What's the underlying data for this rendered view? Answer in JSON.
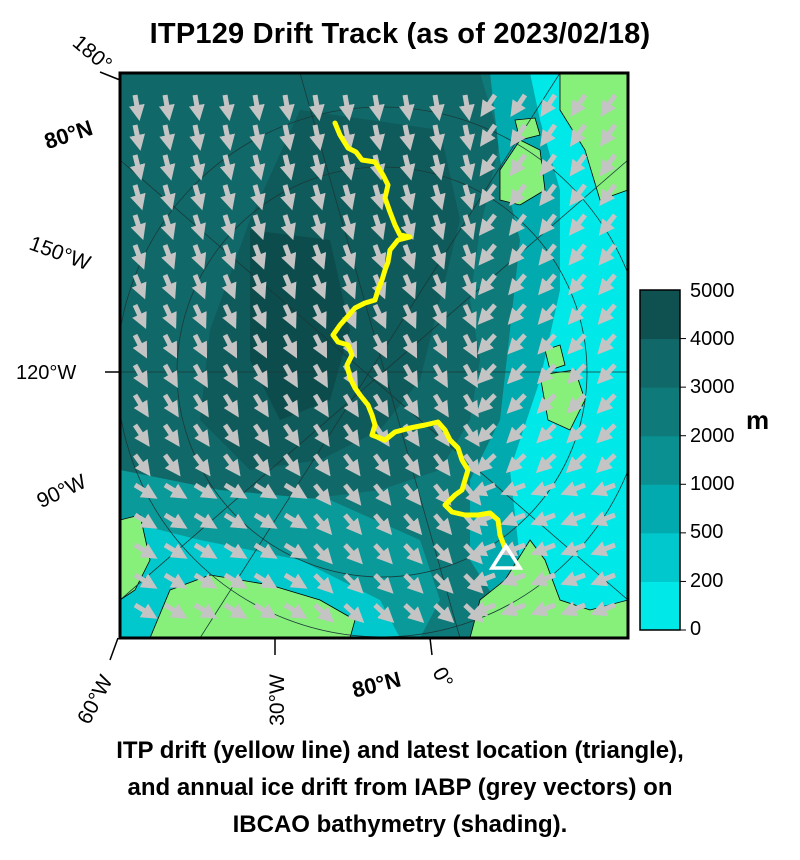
{
  "title": "ITP129 Drift Track (as of 2023/02/18)",
  "caption": {
    "line1": "ITP drift (yellow line) and latest location (triangle),",
    "line2": "and annual ice drift from IABP (grey vectors) on",
    "line3": "IBCAO bathymetry (shading)."
  },
  "graticule_labels": {
    "lon_180": "180°",
    "lat_80_top": "80°N",
    "lon_150w": "150°W",
    "lon_120w": "120°W",
    "lon_90w": "90°W",
    "lon_60w": "60°W",
    "lon_30w": "30°W",
    "lat_80_bottom": "80°N",
    "lon_0": "0°"
  },
  "colorbar": {
    "unit": "m",
    "levels": [
      "5000",
      "4000",
      "3000",
      "2000",
      "1000",
      "500",
      "200",
      "0"
    ],
    "colors": [
      "#00e8e8",
      "#00c8cc",
      "#00aaae",
      "#0a9090",
      "#0f7a7a",
      "#116868",
      "#0f5050"
    ]
  },
  "colors": {
    "land": "#86f07a",
    "track": "#ffff00",
    "vectors": "#c4c4c4",
    "latest_marker": "#ffffff"
  },
  "legend_items": {
    "track": "ITP drift (yellow line)",
    "marker": "latest location (triangle)",
    "vectors": "annual ice drift from IABP (grey vectors)",
    "shading": "IBCAO bathymetry (shading)"
  }
}
